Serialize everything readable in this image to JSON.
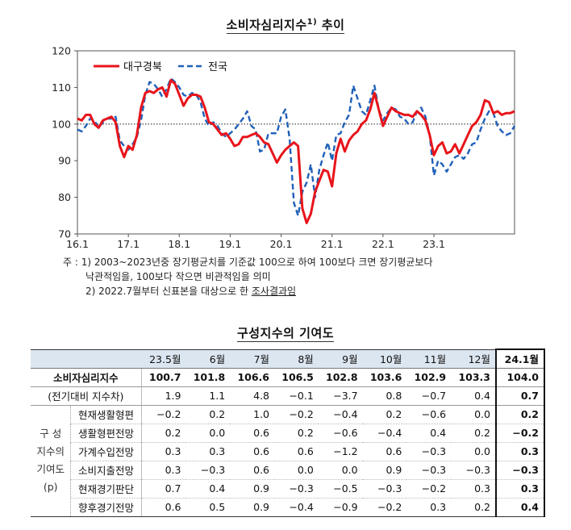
{
  "chart": {
    "title_main": "소비자심리지수",
    "title_sup": "1)",
    "title_after": " 추이",
    "notes": {
      "line1": "주 : 1) 2003~2023년중 장기평균치를 기준값 100으로 하여 100보다 크면 장기평균보다",
      "line2": "낙관적임을, 100보다 작으면 비관적임을 의미",
      "line3_pre": "2) 2022.7월부터 신표본을 대상으로 한 ",
      "line3_u": "조사결과임"
    }
  },
  "chart_data": {
    "type": "line",
    "x_tick_labels": [
      "16.1",
      "17.1",
      "18.1",
      "19.1",
      "20.1",
      "21.1",
      "22.1",
      "23.1"
    ],
    "y_tick_labels": [
      "70",
      "80",
      "90",
      "100",
      "110",
      "120"
    ],
    "ylim": [
      70,
      120
    ],
    "x_start": "2016.1",
    "x_end": "2023.12",
    "reference_line": 100,
    "legend_position": "top-left",
    "series": [
      {
        "name": "대구경북",
        "color": "#e8141b",
        "style": "solid",
        "values": [
          101.5,
          101.0,
          102.5,
          102.5,
          100.0,
          99.0,
          101.0,
          101.5,
          102.0,
          100.5,
          94.0,
          91.0,
          94.0,
          93.0,
          97.0,
          104.5,
          108.5,
          109.0,
          108.5,
          109.5,
          110.0,
          107.5,
          112.0,
          111.0,
          108.0,
          105.0,
          107.0,
          108.0,
          108.0,
          107.5,
          104.5,
          100.5,
          100.0,
          98.5,
          97.0,
          97.5,
          96.0,
          94.0,
          94.5,
          96.5,
          96.5,
          97.0,
          97.5,
          96.5,
          95.0,
          94.5,
          92.0,
          89.5,
          91.5,
          93.0,
          94.0,
          95.0,
          94.0,
          77.0,
          73.0,
          75.5,
          81.5,
          84.5,
          87.5,
          87.0,
          83.0,
          92.0,
          96.0,
          92.5,
          95.5,
          97.0,
          98.0,
          100.0,
          101.0,
          104.0,
          108.5,
          104.0,
          99.5,
          102.0,
          104.5,
          103.5,
          103.0,
          102.5,
          102.5,
          102.0,
          103.5,
          102.5,
          101.0,
          97.0,
          91.5,
          94.0,
          95.0,
          92.0,
          92.5,
          94.5,
          92.0,
          94.5,
          97.0,
          99.5,
          100.5,
          102.5,
          106.5,
          106.0,
          103.0,
          103.5,
          102.5,
          103.0,
          103.0,
          103.5
        ]
      },
      {
        "name": "전국",
        "color": "#2060b8",
        "style": "dashed",
        "values": [
          98.5,
          98.0,
          99.5,
          101.5,
          101.0,
          99.0,
          100.5,
          101.5,
          101.5,
          102.0,
          95.5,
          94.0,
          93.0,
          94.5,
          96.5,
          101.0,
          108.0,
          111.5,
          111.0,
          109.5,
          107.5,
          109.5,
          112.5,
          111.5,
          110.0,
          108.0,
          107.5,
          108.5,
          108.0,
          106.0,
          101.5,
          99.5,
          100.5,
          99.5,
          97.5,
          96.5,
          97.5,
          98.5,
          100.0,
          101.5,
          103.5,
          99.5,
          98.5,
          92.5,
          93.0,
          97.5,
          97.5,
          97.5,
          102.0,
          104.0,
          96.0,
          78.5,
          75.0,
          81.5,
          84.0,
          89.0,
          80.0,
          87.5,
          91.5,
          95.0,
          90.0,
          97.0,
          97.5,
          100.5,
          102.5,
          110.5,
          107.0,
          103.5,
          102.5,
          106.5,
          110.5,
          104.0,
          101.0,
          103.0,
          104.5,
          104.0,
          102.0,
          101.5,
          100.0,
          100.5,
          103.5,
          104.5,
          102.0,
          97.0,
          86.0,
          90.0,
          89.0,
          87.0,
          89.0,
          91.0,
          91.5,
          90.5,
          92.0,
          94.5,
          95.0,
          98.5,
          101.5,
          103.5,
          103.0,
          99.5,
          98.0,
          97.0,
          97.5,
          99.5
        ]
      }
    ]
  },
  "table": {
    "title": "구성지수의 기여도",
    "columns": [
      "23.5월",
      "6월",
      "7월",
      "8월",
      "9월",
      "10월",
      "11월",
      "12월",
      "24.1월"
    ],
    "index_row": {
      "label": "소비자심리지수",
      "values": [
        "100.7",
        "101.8",
        "106.6",
        "106.5",
        "102.8",
        "103.6",
        "102.9",
        "103.3",
        "104.0"
      ]
    },
    "change_row": {
      "label": "(전기대비 지수차)",
      "values": [
        "1.9",
        "1.1",
        "4.8",
        "−0.1",
        "−3.7",
        "0.8",
        "−0.7",
        "0.4",
        "0.7"
      ]
    },
    "group_label_lines": [
      "구 성",
      "지수의",
      "기여도",
      "(p)"
    ],
    "components": [
      {
        "label": "현재생활형편",
        "values": [
          "−0.2",
          "0.2",
          "1.0",
          "−0.2",
          "−0.4",
          "0.2",
          "−0.6",
          "0.0",
          "0.2"
        ]
      },
      {
        "label": "생활형편전망",
        "values": [
          "0.2",
          "0.0",
          "0.6",
          "0.2",
          "−0.6",
          "−0.4",
          "0.4",
          "0.2",
          "−0.2"
        ]
      },
      {
        "label": "가계수입전망",
        "values": [
          "0.3",
          "0.3",
          "0.6",
          "0.6",
          "−1.2",
          "0.6",
          "−0.3",
          "0.0",
          "0.3"
        ]
      },
      {
        "label": "소비지출전망",
        "values": [
          "0.3",
          "−0.3",
          "0.6",
          "0.0",
          "0.0",
          "0.9",
          "−0.3",
          "−0.3",
          "−0.3"
        ]
      },
      {
        "label": "현재경기판단",
        "values": [
          "0.7",
          "0.4",
          "0.9",
          "−0.3",
          "−0.5",
          "−0.3",
          "−0.2",
          "0.3",
          "0.3"
        ]
      },
      {
        "label": "향후경기전망",
        "values": [
          "0.6",
          "0.5",
          "0.9",
          "−0.4",
          "−0.9",
          "−0.2",
          "0.3",
          "0.2",
          "0.4"
        ]
      }
    ]
  }
}
